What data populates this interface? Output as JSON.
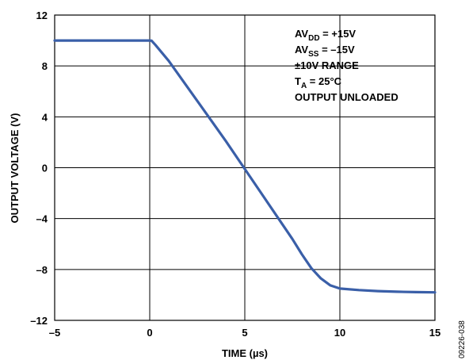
{
  "chart_data": {
    "type": "line",
    "title": "",
    "xlabel": "TIME (µs)",
    "ylabel": "OUTPUT VOLTAGE (V)",
    "xlim": [
      -5,
      15
    ],
    "ylim": [
      -12,
      12
    ],
    "x_ticks": [
      -5,
      0,
      5,
      10,
      15
    ],
    "x_tick_labels": [
      "–5",
      "0",
      "5",
      "10",
      "15"
    ],
    "y_ticks": [
      -12,
      -8,
      -4,
      0,
      4,
      8,
      12
    ],
    "y_tick_labels": [
      "–12",
      "–8",
      "–4",
      "0",
      "4",
      "8",
      "12"
    ],
    "grid": true,
    "line_color": "#3a5fa8",
    "series": [
      {
        "x": [
          -5,
          -2,
          0,
          0.1,
          0.3,
          1,
          2,
          3,
          4,
          5,
          6,
          7,
          7.5,
          8,
          8.5,
          9,
          9.5,
          10,
          11,
          12,
          13,
          14,
          15
        ],
        "y": [
          10,
          10,
          10,
          9.98,
          9.65,
          8.4,
          6.3,
          4.2,
          2.1,
          -0.1,
          -2.3,
          -4.5,
          -5.6,
          -6.8,
          -7.9,
          -8.7,
          -9.25,
          -9.5,
          -9.62,
          -9.7,
          -9.75,
          -9.78,
          -9.8
        ]
      }
    ],
    "annotations": {
      "line1_base": "AV",
      "line1_sub": "DD",
      "line1_rest": " = +15V",
      "line2_base": "AV",
      "line2_sub": "SS",
      "line2_rest": " = –15V",
      "line3": "±10V RANGE",
      "line4_base": "T",
      "line4_sub": "A",
      "line4_rest": " = 25°C",
      "line5": "OUTPUT UNLOADED"
    },
    "figure_id": "09226-038"
  }
}
